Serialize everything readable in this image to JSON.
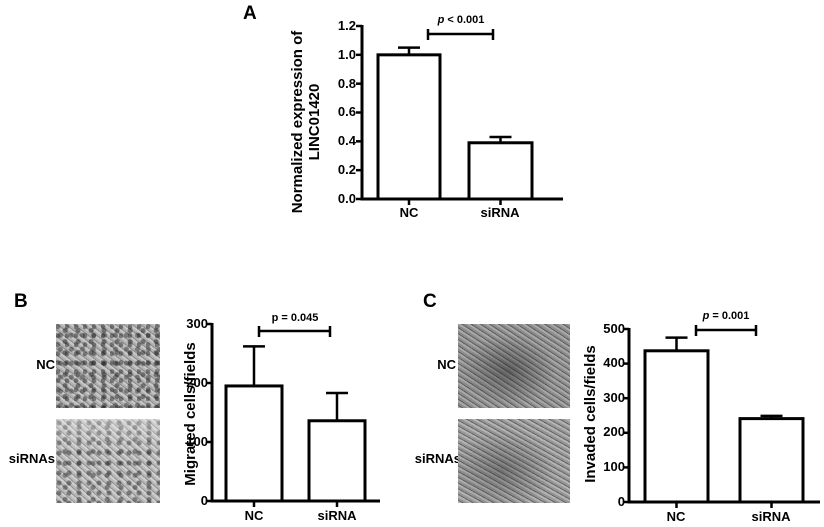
{
  "panels": {
    "A": {
      "letter": "A",
      "ylabel_line1": "Normalized expression of",
      "ylabel_line2": "LINC01420",
      "pvalue_prefix": "p",
      "pvalue_rest": " < 0.001",
      "ticks": [
        "0.0",
        "0.2",
        "0.4",
        "0.6",
        "0.8",
        "1.0",
        "1.2"
      ],
      "categories": [
        "NC",
        "siRNA"
      ]
    },
    "B": {
      "letter": "B",
      "ylabel": "Migrated cells/fields",
      "pvalue": "p = 0.045",
      "ticks": [
        "0",
        "100",
        "200",
        "300"
      ],
      "categories": [
        "NC",
        "siRNA"
      ],
      "image_rows": [
        "NC",
        "siRNAs"
      ]
    },
    "C": {
      "letter": "C",
      "ylabel": "Invaded cells/fields",
      "pvalue_prefix": "p",
      "pvalue_rest": " = 0.001",
      "ticks": [
        "0",
        "100",
        "200",
        "300",
        "400",
        "500"
      ],
      "categories": [
        "NC",
        "siRNA"
      ],
      "image_rows": [
        "NC",
        "siRNAs"
      ]
    }
  },
  "chart_data": [
    {
      "panel": "A",
      "type": "bar",
      "title": "",
      "categories": [
        "NC",
        "siRNA"
      ],
      "values": [
        1.0,
        0.39
      ],
      "error_upper": [
        1.05,
        0.43
      ],
      "ylabel": "Normalized expression of LINC01420",
      "xlabel": "",
      "ylim": [
        0,
        1.2
      ],
      "yticks": [
        0.0,
        0.2,
        0.4,
        0.6,
        0.8,
        1.0,
        1.2
      ],
      "annotation": "p < 0.001",
      "grid": false,
      "legend": null
    },
    {
      "panel": "B",
      "type": "bar",
      "title": "",
      "categories": [
        "NC",
        "siRNA"
      ],
      "values": [
        195,
        136
      ],
      "error_upper": [
        262,
        183
      ],
      "ylabel": "Migrated cells/fields",
      "xlabel": "",
      "ylim": [
        0,
        300
      ],
      "yticks": [
        0,
        100,
        200,
        300
      ],
      "annotation": "p = 0.045",
      "grid": false,
      "legend": null
    },
    {
      "panel": "C",
      "type": "bar",
      "title": "",
      "categories": [
        "NC",
        "siRNA"
      ],
      "values": [
        437,
        241
      ],
      "error_upper": [
        475,
        249
      ],
      "ylabel": "Invaded cells/fields",
      "xlabel": "",
      "ylim": [
        0,
        500
      ],
      "yticks": [
        0,
        100,
        200,
        300,
        400,
        500
      ],
      "annotation": "p = 0.001",
      "grid": false,
      "legend": null
    }
  ]
}
